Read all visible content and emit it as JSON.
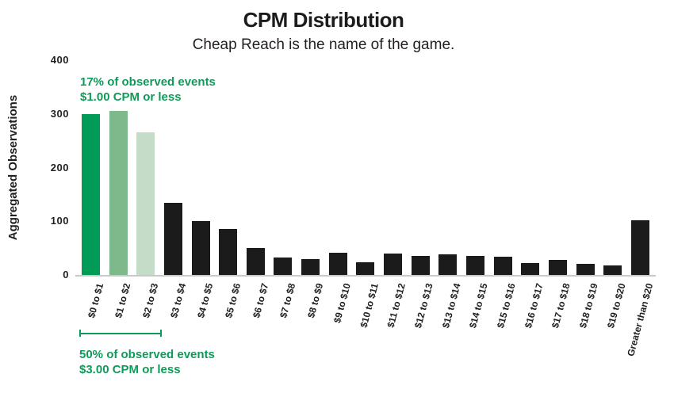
{
  "header": {
    "title": "CPM Distribution",
    "subtitle": "Cheap Reach is the name of the game."
  },
  "annotations": {
    "top": {
      "line1": "17% of observed events",
      "line2": "$1.00 CPM or less"
    },
    "bottom": {
      "line1": "50% of observed events",
      "line2": "$3.00 CPM or less"
    }
  },
  "colors": {
    "accent_green": "#109a59",
    "bar_green_dark": "#009b56",
    "bar_green_mid": "#7eb98c",
    "bar_green_light": "#c5dcc8",
    "bar_black": "#1b1b1b",
    "axis_line": "#c9c9c9",
    "text": "#231f20"
  },
  "chart_data": {
    "type": "bar",
    "title": "CPM Distribution",
    "subtitle": "Cheap Reach is the name of the game.",
    "xlabel": "",
    "ylabel": "Aggregated Observations",
    "ylim": [
      0,
      400
    ],
    "yticks": [
      400,
      300,
      200,
      100,
      0
    ],
    "grid": false,
    "legend": false,
    "categories": [
      "$0 to $1",
      "$1 to $2",
      "$2 to $3",
      "$3 to $4",
      "$4 to $5",
      "$5 to $6",
      "$6 to $7",
      "$7 to $8",
      "$8 to $9",
      "$9 to $10",
      "$10 to $11",
      "$11 to $12",
      "$12 to $13",
      "$13 to $14",
      "$14 to $15",
      "$15 to $16",
      "$16 to $17",
      "$17 to $18",
      "$18 to $19",
      "$19 to $20",
      "Greater than $20"
    ],
    "values": [
      300,
      305,
      265,
      135,
      100,
      85,
      50,
      33,
      30,
      42,
      23,
      40,
      35,
      39,
      35,
      34,
      22,
      28,
      21,
      18,
      102
    ],
    "bar_colors": [
      "#009b56",
      "#7eb98c",
      "#c5dcc8"
    ],
    "bar_color_default": "#1b1b1b",
    "annotations": [
      "17% of observed events / $1.00 CPM or less (bars $0-$1)",
      "50% of observed events / $3.00 CPM or less (bracket spanning bars $0-$3)"
    ]
  }
}
